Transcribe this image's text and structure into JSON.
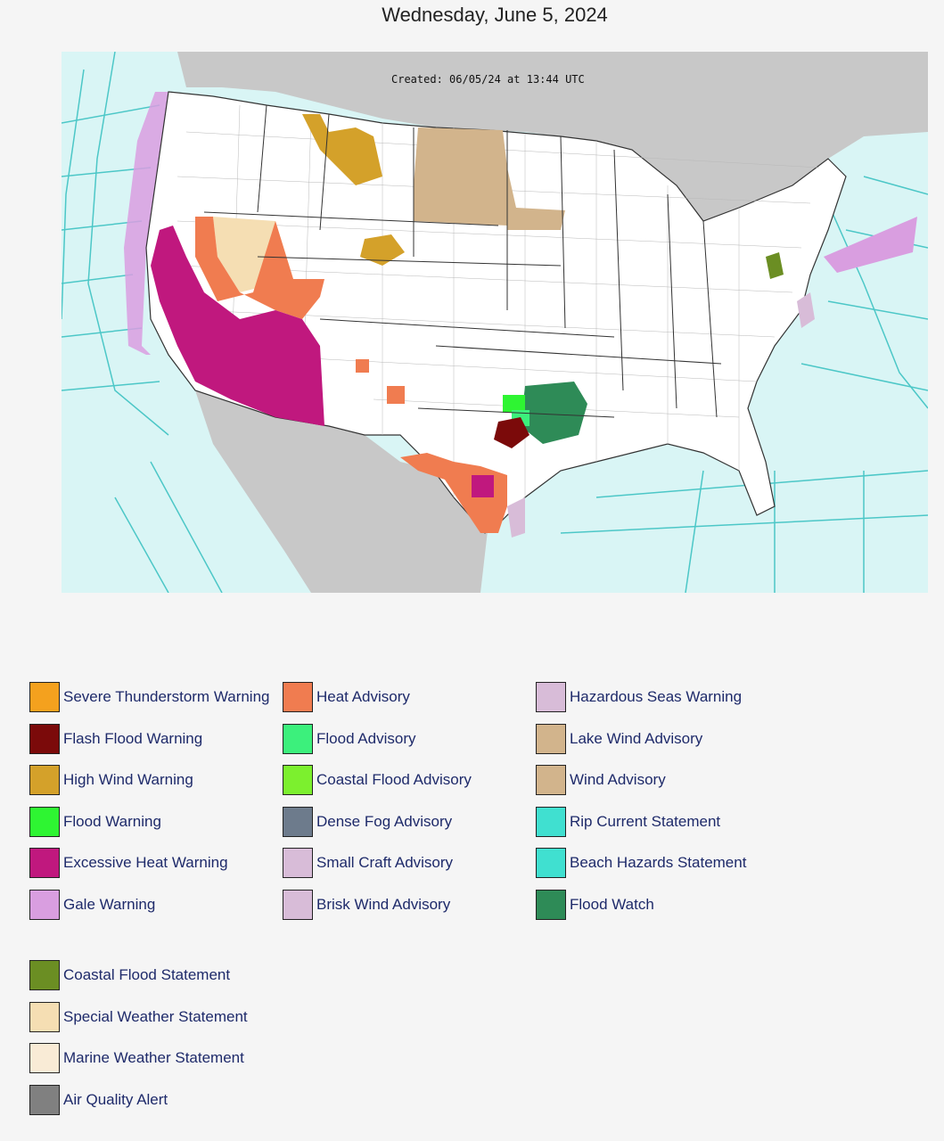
{
  "title": "Wednesday, June 5, 2024",
  "map": {
    "created": "Created: 06/05/24 at 13:44 UTC",
    "colors": {
      "ocean": "#d9f5f5",
      "marine_zone_line": "#4cc7c7",
      "land_other": "#c8c8c8",
      "land_us": "#ffffff",
      "county_line": "#999999",
      "state_line": "#333333"
    }
  },
  "legend": {
    "col1": [
      {
        "label": "Severe Thunderstorm Warning",
        "color": "#f4a11e"
      },
      {
        "label": "Flash Flood Warning",
        "color": "#7b0a0a"
      },
      {
        "label": "High Wind Warning",
        "color": "#d4a12a"
      },
      {
        "label": "Flood Warning",
        "color": "#2ef532"
      },
      {
        "label": "Excessive Heat Warning",
        "color": "#c0187e"
      },
      {
        "label": "Gale Warning",
        "color": "#d99ee0"
      }
    ],
    "col2": [
      {
        "label": "Heat Advisory",
        "color": "#f07c50"
      },
      {
        "label": "Flood Advisory",
        "color": "#3cf07c"
      },
      {
        "label": "Coastal Flood Advisory",
        "color": "#7cf02e"
      },
      {
        "label": "Dense Fog Advisory",
        "color": "#6d7b8c"
      },
      {
        "label": "Small Craft Advisory",
        "color": "#d8bcd8"
      },
      {
        "label": "Brisk Wind Advisory",
        "color": "#d8bcd8"
      }
    ],
    "col3": [
      {
        "label": "Hazardous Seas Warning",
        "color": "#d8bcd8"
      },
      {
        "label": "Lake Wind Advisory",
        "color": "#d2b48c"
      },
      {
        "label": "Wind Advisory",
        "color": "#d2b48c"
      },
      {
        "label": "Rip Current Statement",
        "color": "#40e0d0"
      },
      {
        "label": "Beach Hazards Statement",
        "color": "#40e0d0"
      },
      {
        "label": "Flood Watch",
        "color": "#2e8b57"
      }
    ],
    "col4": [
      {
        "label": "Coastal Flood Statement",
        "color": "#6b8e23"
      },
      {
        "label": "Special Weather Statement",
        "color": "#f5deb3"
      },
      {
        "label": "Marine Weather Statement",
        "color": "#f9ebd6"
      },
      {
        "label": "Air Quality Alert",
        "color": "#808080"
      }
    ]
  }
}
